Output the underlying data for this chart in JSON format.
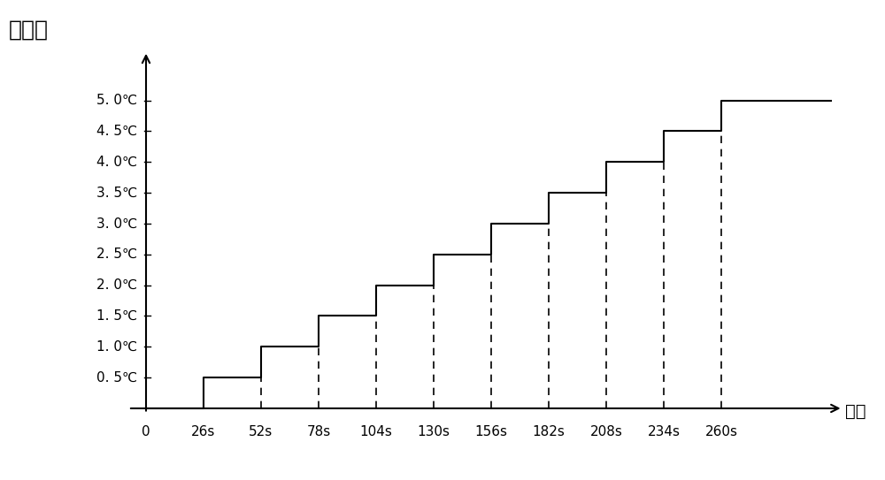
{
  "title_y": "补偽値",
  "title_x": "时间",
  "x_ticks": [
    0,
    26,
    52,
    78,
    104,
    130,
    156,
    182,
    208,
    234,
    260
  ],
  "x_tick_labels": [
    "0",
    "26s",
    "52s",
    "78s",
    "104s",
    "130s",
    "156s",
    "182s",
    "208s",
    "234s",
    "260s"
  ],
  "y_ticks": [
    0.5,
    1.0,
    1.5,
    2.0,
    2.5,
    3.0,
    3.5,
    4.0,
    4.5,
    5.0
  ],
  "y_tick_labels": [
    "0. 5℃",
    "1. 0℃",
    "1. 5℃",
    "2. 0℃",
    "2. 5℃",
    "3. 0℃",
    "3. 5℃",
    "4. 0℃",
    "4. 5℃",
    "5. 0℃"
  ],
  "step_x": [
    0,
    26,
    26,
    52,
    52,
    78,
    78,
    104,
    104,
    130,
    130,
    156,
    156,
    182,
    182,
    208,
    208,
    234,
    234,
    260,
    260,
    310
  ],
  "step_y": [
    0,
    0,
    0.5,
    0.5,
    1.0,
    1.0,
    1.5,
    1.5,
    2.0,
    2.0,
    2.5,
    2.5,
    3.0,
    3.0,
    3.5,
    3.5,
    4.0,
    4.0,
    4.5,
    4.5,
    5.0,
    5.0
  ],
  "dashed_x": [
    52,
    78,
    104,
    130,
    156,
    182,
    208,
    234,
    260
  ],
  "dashed_y_pairs": [
    [
      0,
      1.0
    ],
    [
      0,
      1.5
    ],
    [
      0,
      2.0
    ],
    [
      0,
      2.5
    ],
    [
      0,
      3.0
    ],
    [
      0,
      3.5
    ],
    [
      0,
      4.0
    ],
    [
      0,
      4.5
    ],
    [
      0,
      5.0
    ]
  ],
  "line_color": "#000000",
  "dashed_color": "#000000",
  "background_color": "#ffffff",
  "xlim": [
    -10,
    318
  ],
  "ylim": [
    -0.15,
    5.85
  ],
  "figsize": [
    10.0,
    5.43
  ],
  "dpi": 100
}
